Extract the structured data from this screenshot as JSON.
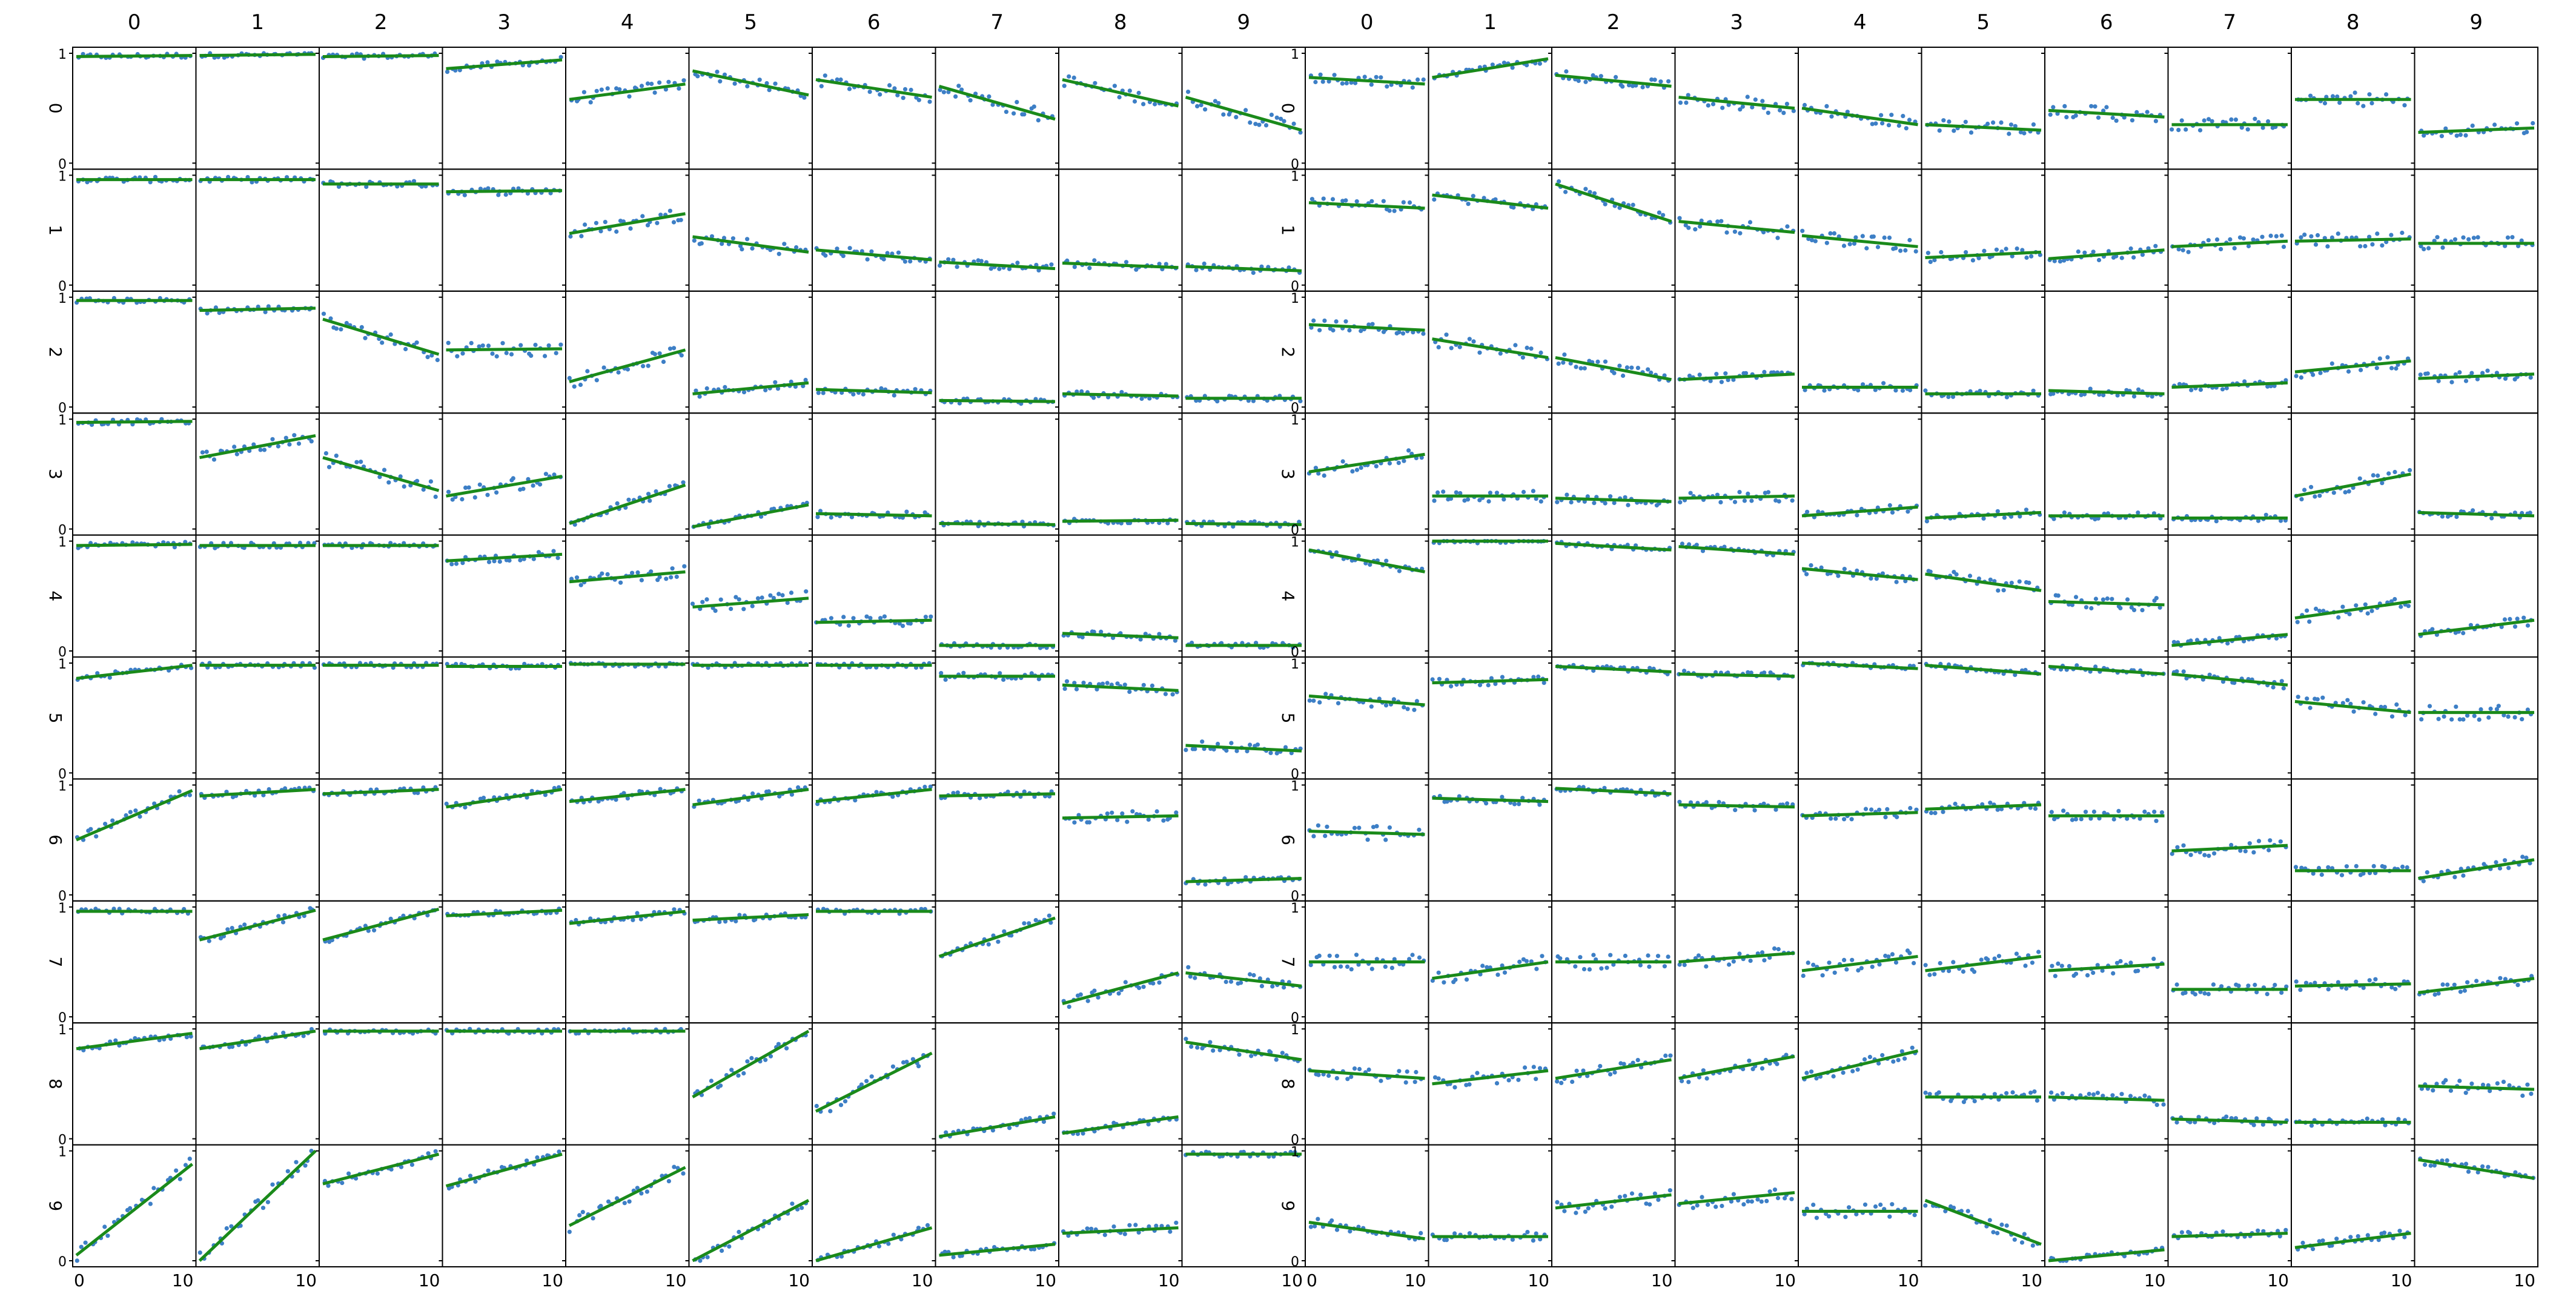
{
  "chart_data": {
    "type": "scatter",
    "layout": "two panels of 10 x 10 small-multiple scatter plots with fitted lines",
    "column_labels": [
      "0",
      "1",
      "2",
      "3",
      "4",
      "5",
      "6",
      "7",
      "8",
      "9"
    ],
    "row_labels": [
      "0",
      "1",
      "2",
      "3",
      "4",
      "5",
      "6",
      "7",
      "8",
      "9"
    ],
    "y_ticks": [
      "0",
      "1"
    ],
    "x_ticks": [
      "0",
      "10"
    ],
    "x_range": [
      0,
      10
    ],
    "y_range": [
      0,
      1
    ],
    "colors": {
      "points": "#3d7fc6",
      "line": "#1a8a1a",
      "frame": "#000000",
      "background": "#ffffff"
    },
    "note_fit": "Each cell shows scattered points and a least-squares line; values below are the fitted line values at x=0 and x=10.",
    "panels": [
      {
        "fit_start": [
          [
            0.97,
            0.98,
            0.97,
            0.86,
            0.58,
            0.84,
            0.76,
            0.7,
            0.76,
            0.6
          ],
          [
            0.96,
            0.96,
            0.92,
            0.85,
            0.47,
            0.44,
            0.32,
            0.21,
            0.2,
            0.17
          ],
          [
            0.97,
            0.88,
            0.8,
            0.52,
            0.23,
            0.12,
            0.16,
            0.06,
            0.12,
            0.08
          ],
          [
            0.97,
            0.65,
            0.65,
            0.3,
            0.05,
            0.02,
            0.14,
            0.05,
            0.07,
            0.05
          ],
          [
            0.96,
            0.96,
            0.96,
            0.82,
            0.63,
            0.4,
            0.26,
            0.05,
            0.16,
            0.05
          ],
          [
            0.86,
            0.98,
            0.98,
            0.97,
            0.99,
            0.98,
            0.98,
            0.88,
            0.8,
            0.25
          ],
          [
            0.5,
            0.9,
            0.92,
            0.8,
            0.85,
            0.82,
            0.85,
            0.9,
            0.7,
            0.12
          ],
          [
            0.96,
            0.7,
            0.7,
            0.92,
            0.85,
            0.88,
            0.96,
            0.55,
            0.12,
            0.4
          ],
          [
            0.82,
            0.82,
            0.98,
            0.98,
            0.98,
            0.38,
            0.25,
            0.02,
            0.05,
            0.88
          ],
          [
            0.05,
            0.0,
            0.7,
            0.68,
            0.32,
            0.0,
            0.0,
            0.05,
            0.25,
            0.97
          ]
        ],
        "fit_end": [
          [
            0.98,
            0.99,
            0.98,
            0.94,
            0.72,
            0.62,
            0.6,
            0.4,
            0.52,
            0.3
          ],
          [
            0.96,
            0.96,
            0.92,
            0.86,
            0.65,
            0.3,
            0.23,
            0.15,
            0.16,
            0.13
          ],
          [
            0.97,
            0.9,
            0.48,
            0.53,
            0.52,
            0.22,
            0.13,
            0.05,
            0.1,
            0.08
          ],
          [
            0.98,
            0.85,
            0.35,
            0.48,
            0.4,
            0.22,
            0.12,
            0.04,
            0.08,
            0.04
          ],
          [
            0.97,
            0.96,
            0.96,
            0.88,
            0.72,
            0.48,
            0.28,
            0.05,
            0.12,
            0.05
          ],
          [
            0.98,
            0.98,
            0.98,
            0.97,
            0.99,
            0.98,
            0.98,
            0.88,
            0.75,
            0.2
          ],
          [
            0.95,
            0.96,
            0.96,
            0.96,
            0.96,
            0.96,
            0.96,
            0.92,
            0.72,
            0.15
          ],
          [
            0.96,
            0.97,
            0.98,
            0.97,
            0.96,
            0.93,
            0.96,
            0.9,
            0.4,
            0.28
          ],
          [
            0.96,
            0.98,
            0.98,
            0.98,
            0.98,
            0.98,
            0.78,
            0.2,
            0.2,
            0.72
          ],
          [
            0.88,
            1.0,
            0.97,
            0.97,
            0.85,
            0.55,
            0.3,
            0.15,
            0.3,
            0.97
          ]
        ]
      },
      {
        "fit_start": [
          [
            0.78,
            0.78,
            0.8,
            0.6,
            0.5,
            0.35,
            0.48,
            0.35,
            0.58,
            0.28
          ],
          [
            0.75,
            0.82,
            0.92,
            0.58,
            0.45,
            0.25,
            0.24,
            0.35,
            0.4,
            0.38
          ],
          [
            0.75,
            0.62,
            0.45,
            0.25,
            0.18,
            0.12,
            0.15,
            0.18,
            0.32,
            0.26
          ],
          [
            0.52,
            0.3,
            0.28,
            0.28,
            0.12,
            0.1,
            0.12,
            0.1,
            0.3,
            0.15
          ],
          [
            0.92,
            1.0,
            0.98,
            0.95,
            0.75,
            0.7,
            0.45,
            0.05,
            0.3,
            0.15
          ],
          [
            0.7,
            0.82,
            0.97,
            0.9,
            1.0,
            0.98,
            0.97,
            0.9,
            0.65,
            0.55
          ],
          [
            0.58,
            0.88,
            0.97,
            0.82,
            0.72,
            0.78,
            0.72,
            0.4,
            0.22,
            0.15
          ],
          [
            0.5,
            0.35,
            0.5,
            0.5,
            0.42,
            0.42,
            0.42,
            0.25,
            0.28,
            0.22
          ],
          [
            0.62,
            0.5,
            0.55,
            0.55,
            0.55,
            0.38,
            0.38,
            0.18,
            0.15,
            0.48
          ],
          [
            0.35,
            0.22,
            0.48,
            0.52,
            0.45,
            0.55,
            0.0,
            0.22,
            0.12,
            0.92
          ]
        ],
        "fit_end": [
          [
            0.72,
            0.95,
            0.7,
            0.5,
            0.35,
            0.3,
            0.42,
            0.35,
            0.58,
            0.32
          ],
          [
            0.7,
            0.7,
            0.58,
            0.48,
            0.35,
            0.3,
            0.32,
            0.4,
            0.42,
            0.38
          ],
          [
            0.7,
            0.45,
            0.25,
            0.3,
            0.18,
            0.12,
            0.12,
            0.22,
            0.42,
            0.3
          ],
          [
            0.68,
            0.3,
            0.25,
            0.3,
            0.2,
            0.15,
            0.12,
            0.1,
            0.5,
            0.12
          ],
          [
            0.72,
            1.0,
            0.92,
            0.88,
            0.65,
            0.55,
            0.42,
            0.15,
            0.45,
            0.28
          ],
          [
            0.62,
            0.85,
            0.92,
            0.88,
            0.95,
            0.9,
            0.9,
            0.8,
            0.55,
            0.55
          ],
          [
            0.55,
            0.85,
            0.92,
            0.8,
            0.75,
            0.82,
            0.72,
            0.45,
            0.22,
            0.32
          ],
          [
            0.5,
            0.5,
            0.5,
            0.58,
            0.55,
            0.55,
            0.48,
            0.25,
            0.3,
            0.35
          ],
          [
            0.55,
            0.62,
            0.72,
            0.75,
            0.8,
            0.38,
            0.35,
            0.15,
            0.15,
            0.45
          ],
          [
            0.2,
            0.22,
            0.6,
            0.62,
            0.45,
            0.15,
            0.1,
            0.25,
            0.25,
            0.75
          ]
        ]
      }
    ]
  }
}
